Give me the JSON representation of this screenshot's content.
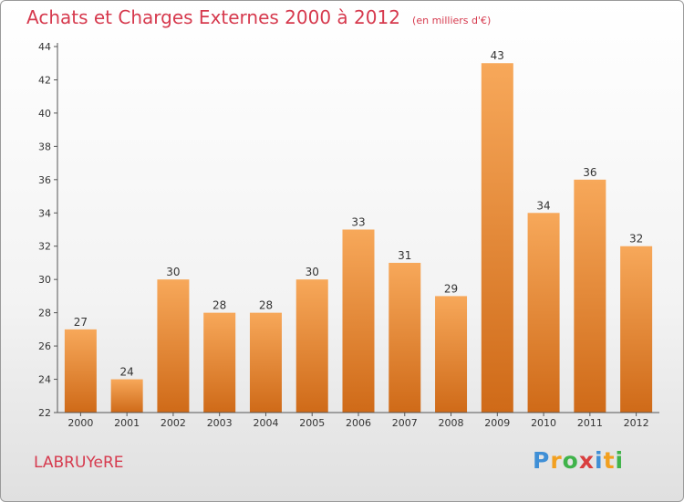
{
  "header": {
    "title": "Achats et Charges Externes 2000 à 2012",
    "subtitle": "(en milliers d'€)"
  },
  "footer": {
    "commune": "LABRUYeRE",
    "logo_letters": [
      "P",
      "r",
      "o",
      "x",
      "i",
      "t",
      "i"
    ],
    "logo_colors": [
      "#3f8fd6",
      "#f2a020",
      "#3fb34a",
      "#d93f3f",
      "#3f8fd6",
      "#f2a020",
      "#3fb34a"
    ]
  },
  "colors": {
    "bar_light": "#f7a85a",
    "bar_dark": "#cf6a18",
    "text": "#d63a4e"
  },
  "chart_data": {
    "type": "bar",
    "categories": [
      "2000",
      "2001",
      "2002",
      "2003",
      "2004",
      "2005",
      "2006",
      "2007",
      "2008",
      "2009",
      "2010",
      "2011",
      "2012"
    ],
    "values": [
      27,
      24,
      30,
      28,
      28,
      30,
      33,
      31,
      29,
      43,
      34,
      36,
      32
    ],
    "ylim": [
      22,
      44
    ],
    "yticks": [
      22,
      24,
      26,
      28,
      30,
      32,
      34,
      36,
      38,
      40,
      42,
      44
    ],
    "grid": false
  }
}
